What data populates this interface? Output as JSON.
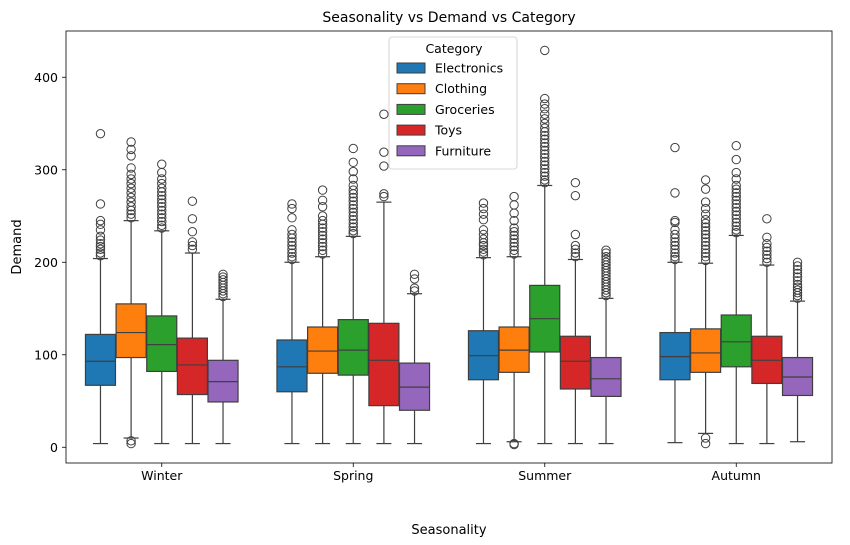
{
  "chart_data": {
    "type": "box",
    "title": "Seasonality vs Demand vs Category",
    "xlabel": "Seasonality",
    "ylabel": "Demand",
    "ylim": [
      -17,
      450
    ],
    "yticks": [
      0,
      100,
      200,
      300,
      400
    ],
    "grid": false,
    "legend": {
      "title": "Category",
      "placement": "top-center"
    },
    "categories": [
      "Winter",
      "Spring",
      "Summer",
      "Autumn"
    ],
    "series": [
      {
        "name": "Electronics",
        "color": "#1f77b4",
        "boxes": [
          {
            "whislo": 4,
            "q1": 67,
            "med": 93,
            "q3": 122,
            "whishi": 204,
            "fliers": [
              207,
              210,
              214,
              217,
              220,
              224,
              228,
              235,
              241,
              245,
              263,
              339
            ]
          },
          {
            "whislo": 4,
            "q1": 60,
            "med": 87,
            "q3": 116,
            "whishi": 200,
            "fliers": [
              203,
              206,
              210,
              214,
              218,
              222,
              226,
              230,
              235,
              248,
              258,
              263
            ]
          },
          {
            "whislo": 4,
            "q1": 73,
            "med": 99,
            "q3": 126,
            "whishi": 205,
            "fliers": [
              208,
              211,
              214,
              218,
              221,
              225,
              230,
              235,
              246,
              252,
              258,
              264
            ]
          },
          {
            "whislo": 5,
            "q1": 73,
            "med": 98,
            "q3": 124,
            "whishi": 200,
            "fliers": [
              203,
              206,
              210,
              214,
              218,
              222,
              226,
              230,
              235,
              243,
              245,
              275,
              324
            ]
          }
        ]
      },
      {
        "name": "Clothing",
        "color": "#ff7f0e",
        "boxes": [
          {
            "whislo": 10,
            "q1": 97,
            "med": 124,
            "q3": 155,
            "whishi": 245,
            "fliers": [
              4,
              7,
              248,
              252,
              256,
              260,
              265,
              270,
              275,
              280,
              285,
              290,
              295,
              302,
              315,
              322,
              330
            ]
          },
          {
            "whislo": 4,
            "q1": 80,
            "med": 104,
            "q3": 130,
            "whishi": 206,
            "fliers": [
              209,
              213,
              217,
              221,
              225,
              229,
              233,
              237,
              241,
              245,
              250,
              260,
              267,
              278
            ]
          },
          {
            "whislo": 6,
            "q1": 81,
            "med": 105,
            "q3": 130,
            "whishi": 206,
            "fliers": [
              3,
              4,
              209,
              213,
              217,
              221,
              225,
              229,
              233,
              237,
              245,
              253,
              262,
              271
            ]
          },
          {
            "whislo": 15,
            "q1": 81,
            "med": 102,
            "q3": 128,
            "whishi": 199,
            "fliers": [
              4,
              10,
              202,
              206,
              210,
              214,
              218,
              222,
              226,
              230,
              234,
              238,
              242,
              246,
              252,
              258,
              265,
              279,
              289
            ]
          }
        ]
      },
      {
        "name": "Groceries",
        "color": "#2ca02c",
        "boxes": [
          {
            "whislo": 4,
            "q1": 82,
            "med": 111,
            "q3": 142,
            "whishi": 234,
            "fliers": [
              237,
              240,
              244,
              248,
              252,
              256,
              260,
              264,
              268,
              272,
              276,
              280,
              285,
              290,
              297,
              306
            ]
          },
          {
            "whislo": 4,
            "q1": 78,
            "med": 105,
            "q3": 138,
            "whishi": 228,
            "fliers": [
              231,
              234,
              238,
              242,
              246,
              250,
              254,
              258,
              262,
              266,
              270,
              274,
              278,
              283,
              290,
              298,
              308,
              323
            ]
          },
          {
            "whislo": 4,
            "q1": 103,
            "med": 139,
            "q3": 175,
            "whishi": 283,
            "fliers": [
              286,
              289,
              293,
              297,
              301,
              305,
              309,
              313,
              317,
              321,
              325,
              329,
              333,
              337,
              341,
              345,
              350,
              355,
              360,
              366,
              371,
              377,
              429
            ]
          },
          {
            "whislo": 4,
            "q1": 87,
            "med": 114,
            "q3": 143,
            "whishi": 229,
            "fliers": [
              232,
              235,
              239,
              243,
              247,
              251,
              255,
              259,
              263,
              267,
              271,
              275,
              279,
              283,
              290,
              297,
              311,
              326
            ]
          }
        ]
      },
      {
        "name": "Toys",
        "color": "#d62728",
        "boxes": [
          {
            "whislo": 4,
            "q1": 57,
            "med": 89,
            "q3": 118,
            "whishi": 210,
            "fliers": [
              214,
              218,
              222,
              233,
              247,
              266
            ]
          },
          {
            "whislo": 4,
            "q1": 45,
            "med": 94,
            "q3": 134,
            "whishi": 265,
            "fliers": [
              271,
              274,
              304,
              319,
              360
            ]
          },
          {
            "whislo": 4,
            "q1": 63,
            "med": 93,
            "q3": 120,
            "whishi": 203,
            "fliers": [
              206,
              210,
              214,
              218,
              230,
              272,
              286
            ]
          },
          {
            "whislo": 4,
            "q1": 69,
            "med": 94,
            "q3": 120,
            "whishi": 197,
            "fliers": [
              200,
              204,
              208,
              212,
              216,
              220,
              227,
              247
            ]
          }
        ]
      },
      {
        "name": "Furniture",
        "color": "#9467bd",
        "boxes": [
          {
            "whislo": 4,
            "q1": 49,
            "med": 71,
            "q3": 94,
            "whishi": 160,
            "fliers": [
              163,
              166,
              169,
              172,
              175,
              178,
              181,
              184,
              187
            ]
          },
          {
            "whislo": 4,
            "q1": 40,
            "med": 65,
            "q3": 91,
            "whishi": 166,
            "fliers": [
              169,
              172,
              182,
              187
            ]
          },
          {
            "whislo": 4,
            "q1": 55,
            "med": 74,
            "q3": 97,
            "whishi": 161,
            "fliers": [
              164,
              167,
              170,
              173,
              176,
              179,
              182,
              185,
              188,
              191,
              194,
              197,
              200,
              203,
              206,
              210,
              213
            ]
          },
          {
            "whislo": 6,
            "q1": 56,
            "med": 76,
            "q3": 97,
            "whishi": 158,
            "fliers": [
              161,
              164,
              167,
              170,
              173,
              176,
              180,
              184,
              188,
              192,
              196,
              200
            ]
          }
        ]
      }
    ]
  }
}
